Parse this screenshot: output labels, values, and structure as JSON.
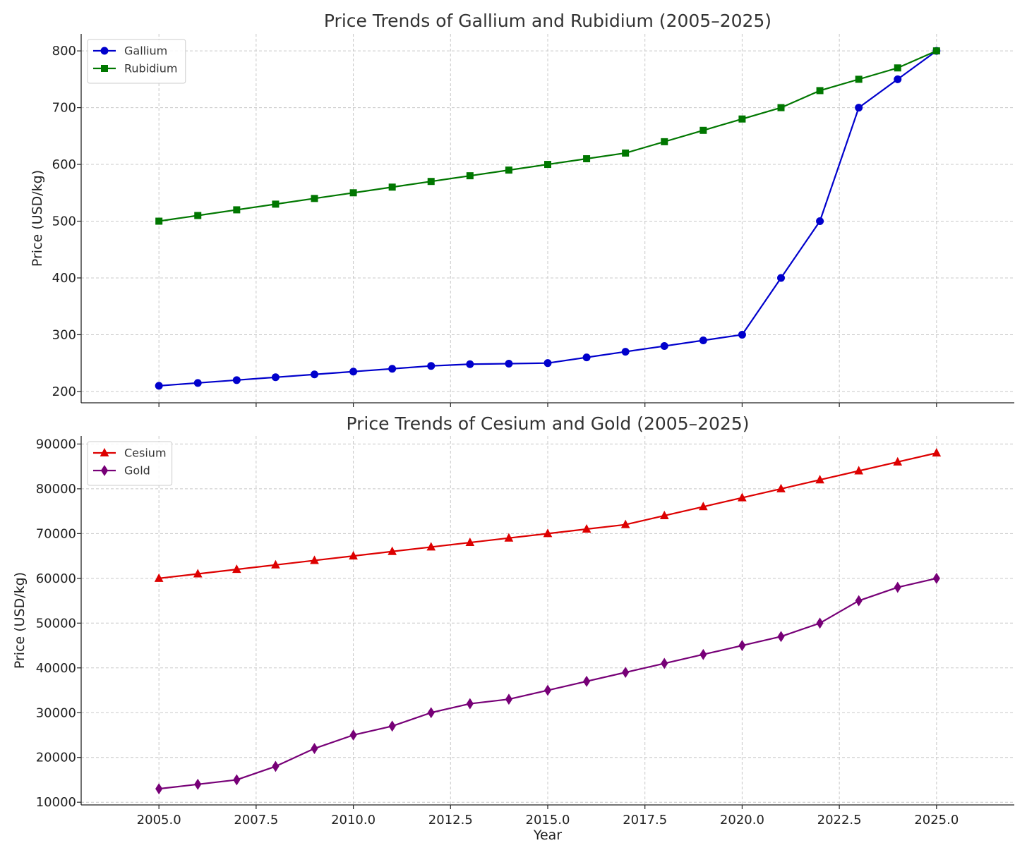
{
  "chart_data": [
    {
      "type": "line",
      "title": "Price Trends of Gallium and Rubidium (2005–2025)",
      "xlabel": "",
      "ylabel": "Price (USD/kg)",
      "xlim": [
        2003,
        2027
      ],
      "ylim": [
        180,
        830
      ],
      "xticks": [
        2005.0,
        2007.5,
        2010.0,
        2012.5,
        2015.0,
        2017.5,
        2020.0,
        2022.5,
        2025.0
      ],
      "xtick_labels_shown": false,
      "yticks": [
        200,
        300,
        400,
        500,
        600,
        700,
        800
      ],
      "ytick_labels": [
        "200",
        "300",
        "400",
        "500",
        "600",
        "700",
        "800"
      ],
      "grid": true,
      "legend_position": "top-left",
      "x": [
        2005,
        2006,
        2007,
        2008,
        2009,
        2010,
        2011,
        2012,
        2013,
        2014,
        2015,
        2016,
        2017,
        2018,
        2019,
        2020,
        2021,
        2022,
        2023,
        2024,
        2025
      ],
      "series": [
        {
          "name": "Gallium",
          "color": "#0000cc",
          "marker": "circle",
          "values": [
            210,
            215,
            220,
            225,
            230,
            235,
            240,
            245,
            248,
            249,
            250,
            260,
            270,
            280,
            290,
            300,
            400,
            500,
            700,
            750,
            800
          ]
        },
        {
          "name": "Rubidium",
          "color": "#007700",
          "marker": "square",
          "values": [
            500,
            510,
            520,
            530,
            540,
            550,
            560,
            570,
            580,
            590,
            600,
            610,
            620,
            640,
            660,
            680,
            700,
            730,
            750,
            770,
            800
          ]
        }
      ]
    },
    {
      "type": "line",
      "title": "Price Trends of Cesium and Gold (2005–2025)",
      "xlabel": "Year",
      "ylabel": "Price (USD/kg)",
      "xlim": [
        2003,
        2027
      ],
      "ylim": [
        9400,
        91800
      ],
      "xticks": [
        2005.0,
        2007.5,
        2010.0,
        2012.5,
        2015.0,
        2017.5,
        2020.0,
        2022.5,
        2025.0
      ],
      "xtick_labels": [
        "2005.0",
        "2007.5",
        "2010.0",
        "2012.5",
        "2015.0",
        "2017.5",
        "2020.0",
        "2022.5",
        "2025.0"
      ],
      "xtick_labels_shown": true,
      "yticks": [
        10000,
        20000,
        30000,
        40000,
        50000,
        60000,
        70000,
        80000,
        90000
      ],
      "ytick_labels": [
        "10000",
        "20000",
        "30000",
        "40000",
        "50000",
        "60000",
        "70000",
        "80000",
        "90000"
      ],
      "grid": true,
      "legend_position": "top-left",
      "x": [
        2005,
        2006,
        2007,
        2008,
        2009,
        2010,
        2011,
        2012,
        2013,
        2014,
        2015,
        2016,
        2017,
        2018,
        2019,
        2020,
        2021,
        2022,
        2023,
        2024,
        2025
      ],
      "series": [
        {
          "name": "Cesium",
          "color": "#dd0000",
          "marker": "triangle",
          "values": [
            60000,
            61000,
            62000,
            63000,
            64000,
            65000,
            66000,
            67000,
            68000,
            69000,
            70000,
            71000,
            72000,
            74000,
            76000,
            78000,
            80000,
            82000,
            84000,
            86000,
            88000
          ]
        },
        {
          "name": "Gold",
          "color": "#770077",
          "marker": "diamond",
          "values": [
            13000,
            14000,
            15000,
            18000,
            22000,
            25000,
            27000,
            30000,
            32000,
            33000,
            35000,
            37000,
            39000,
            41000,
            43000,
            45000,
            47000,
            50000,
            55000,
            58000,
            60000
          ]
        }
      ]
    }
  ]
}
